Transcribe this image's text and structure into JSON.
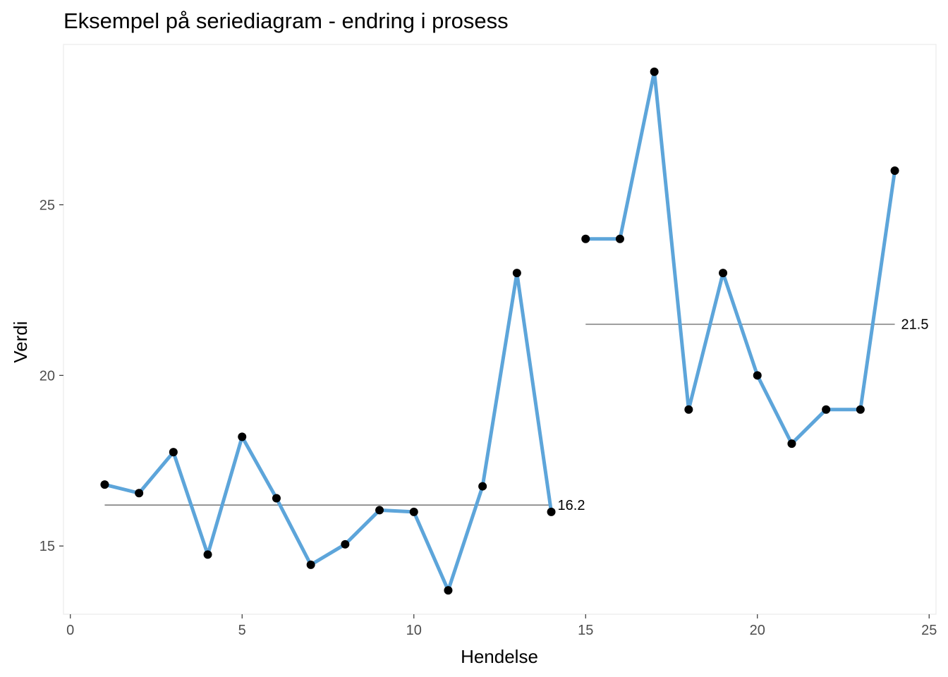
{
  "chart_data": {
    "type": "line",
    "title": "Eksempel på seriediagram - endring i prosess",
    "xlabel": "Hendelse",
    "ylabel": "Verdi",
    "xlim": [
      -0.2,
      25.2
    ],
    "ylim": [
      13.0,
      29.7
    ],
    "x_ticks": [
      0,
      5,
      10,
      15,
      20,
      25
    ],
    "y_ticks": [
      15,
      20,
      25
    ],
    "grid": false,
    "legend": "none",
    "colors": {
      "line": "#5DA5DA",
      "point": "#000000",
      "median": "#7F7F7F",
      "panel_border": "#EBEBEB",
      "tick_text": "#4D4D4D"
    },
    "series": [
      {
        "x": [
          1,
          2,
          3,
          4,
          5,
          6,
          7,
          8,
          9,
          10,
          11,
          12,
          13,
          14
        ],
        "y": [
          16.8,
          16.55,
          17.75,
          14.75,
          18.2,
          16.4,
          14.45,
          15.05,
          16.05,
          16.0,
          13.7,
          16.75,
          23.0,
          16.0
        ],
        "median": 16.2,
        "median_label": "16.2"
      },
      {
        "x": [
          15,
          16,
          17,
          18,
          19,
          20,
          21,
          22,
          23,
          24
        ],
        "y": [
          24,
          24,
          28.9,
          19,
          23,
          20,
          18,
          19,
          19,
          26
        ],
        "median": 21.5,
        "median_label": "21.5"
      }
    ]
  }
}
